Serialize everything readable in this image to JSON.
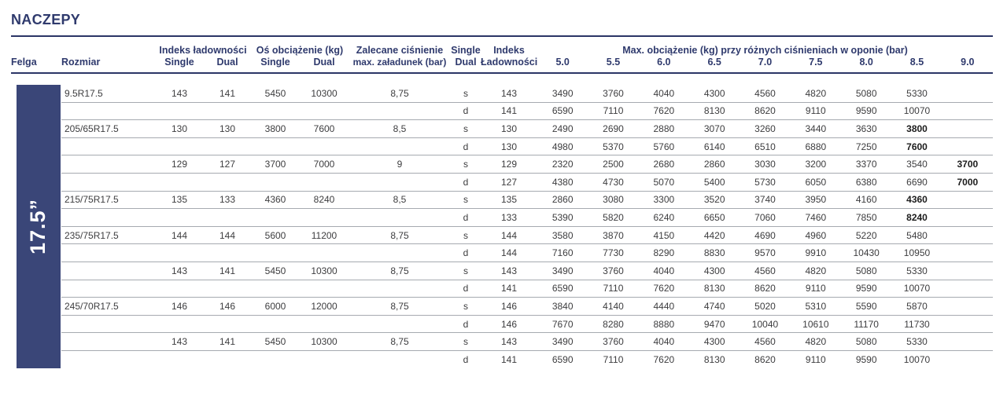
{
  "title": "NACZEPY",
  "sidebar": {
    "rim_label": "17.5”"
  },
  "header": {
    "felga": "Felga",
    "rozmiar": "Rozmiar",
    "indeks_ladownosci_group": "Indeks ładowności",
    "os_obciazenie_group": "Oś obciążenie (kg)",
    "zalecane_line1": "Zalecane ciśnienie",
    "zalecane_line2": "max. załadunek (bar)",
    "single": "Single",
    "dual": "Dual",
    "sd_single": "Single",
    "sd_dual": "Dual",
    "indeks_line1": "Indeks",
    "indeks_line2": "Ładowności",
    "max_obciazenie_group": "Max. obciążenie (kg) przy różnych ciśnieniach w oponie (bar)",
    "pressures": [
      "5.0",
      "5.5",
      "6.0",
      "6.5",
      "7.0",
      "7.5",
      "8.0",
      "8.5",
      "9.0"
    ]
  },
  "rows": [
    {
      "rozmiar": "9.5R17.5",
      "idx_s": "143",
      "idx_d": "141",
      "axle_s": "5450",
      "axle_d": "10300",
      "press": "8,75",
      "sd": "s",
      "ind": "143",
      "loads": [
        "3490",
        "3760",
        "4040",
        "4300",
        "4560",
        "4820",
        "5080",
        "5330",
        ""
      ],
      "bold": []
    },
    {
      "rozmiar": "",
      "idx_s": "",
      "idx_d": "",
      "axle_s": "",
      "axle_d": "",
      "press": "",
      "sd": "d",
      "ind": "141",
      "loads": [
        "6590",
        "7110",
        "7620",
        "8130",
        "8620",
        "9110",
        "9590",
        "10070",
        ""
      ],
      "bold": []
    },
    {
      "rozmiar": "205/65R17.5",
      "idx_s": "130",
      "idx_d": "130",
      "axle_s": "3800",
      "axle_d": "7600",
      "press": "8,5",
      "sd": "s",
      "ind": "130",
      "loads": [
        "2490",
        "2690",
        "2880",
        "3070",
        "3260",
        "3440",
        "3630",
        "3800",
        ""
      ],
      "bold": [
        7
      ]
    },
    {
      "rozmiar": "",
      "idx_s": "",
      "idx_d": "",
      "axle_s": "",
      "axle_d": "",
      "press": "",
      "sd": "d",
      "ind": "130",
      "loads": [
        "4980",
        "5370",
        "5760",
        "6140",
        "6510",
        "6880",
        "7250",
        "7600",
        ""
      ],
      "bold": [
        7
      ]
    },
    {
      "rozmiar": "",
      "idx_s": "129",
      "idx_d": "127",
      "axle_s": "3700",
      "axle_d": "7000",
      "press": "9",
      "sd": "s",
      "ind": "129",
      "loads": [
        "2320",
        "2500",
        "2680",
        "2860",
        "3030",
        "3200",
        "3370",
        "3540",
        "3700"
      ],
      "bold": [
        8
      ]
    },
    {
      "rozmiar": "",
      "idx_s": "",
      "idx_d": "",
      "axle_s": "",
      "axle_d": "",
      "press": "",
      "sd": "d",
      "ind": "127",
      "loads": [
        "4380",
        "4730",
        "5070",
        "5400",
        "5730",
        "6050",
        "6380",
        "6690",
        "7000"
      ],
      "bold": [
        8
      ]
    },
    {
      "rozmiar": "215/75R17.5",
      "idx_s": "135",
      "idx_d": "133",
      "axle_s": "4360",
      "axle_d": "8240",
      "press": "8,5",
      "sd": "s",
      "ind": "135",
      "loads": [
        "2860",
        "3080",
        "3300",
        "3520",
        "3740",
        "3950",
        "4160",
        "4360",
        ""
      ],
      "bold": [
        7
      ]
    },
    {
      "rozmiar": "",
      "idx_s": "",
      "idx_d": "",
      "axle_s": "",
      "axle_d": "",
      "press": "",
      "sd": "d",
      "ind": "133",
      "loads": [
        "5390",
        "5820",
        "6240",
        "6650",
        "7060",
        "7460",
        "7850",
        "8240",
        ""
      ],
      "bold": [
        7
      ]
    },
    {
      "rozmiar": "235/75R17.5",
      "idx_s": "144",
      "idx_d": "144",
      "axle_s": "5600",
      "axle_d": "11200",
      "press": "8,75",
      "sd": "s",
      "ind": "144",
      "loads": [
        "3580",
        "3870",
        "4150",
        "4420",
        "4690",
        "4960",
        "5220",
        "5480",
        ""
      ],
      "bold": []
    },
    {
      "rozmiar": "",
      "idx_s": "",
      "idx_d": "",
      "axle_s": "",
      "axle_d": "",
      "press": "",
      "sd": "d",
      "ind": "144",
      "loads": [
        "7160",
        "7730",
        "8290",
        "8830",
        "9570",
        "9910",
        "10430",
        "10950",
        ""
      ],
      "bold": []
    },
    {
      "rozmiar": "",
      "idx_s": "143",
      "idx_d": "141",
      "axle_s": "5450",
      "axle_d": "10300",
      "press": "8,75",
      "sd": "s",
      "ind": "143",
      "loads": [
        "3490",
        "3760",
        "4040",
        "4300",
        "4560",
        "4820",
        "5080",
        "5330",
        ""
      ],
      "bold": []
    },
    {
      "rozmiar": "",
      "idx_s": "",
      "idx_d": "",
      "axle_s": "",
      "axle_d": "",
      "press": "",
      "sd": "d",
      "ind": "141",
      "loads": [
        "6590",
        "7110",
        "7620",
        "8130",
        "8620",
        "9110",
        "9590",
        "10070",
        ""
      ],
      "bold": []
    },
    {
      "rozmiar": "245/70R17.5",
      "idx_s": "146",
      "idx_d": "146",
      "axle_s": "6000",
      "axle_d": "12000",
      "press": "8,75",
      "sd": "s",
      "ind": "146",
      "loads": [
        "3840",
        "4140",
        "4440",
        "4740",
        "5020",
        "5310",
        "5590",
        "5870",
        ""
      ],
      "bold": []
    },
    {
      "rozmiar": "",
      "idx_s": "",
      "idx_d": "",
      "axle_s": "",
      "axle_d": "",
      "press": "",
      "sd": "d",
      "ind": "146",
      "loads": [
        "7670",
        "8280",
        "8880",
        "9470",
        "10040",
        "10610",
        "11170",
        "11730",
        ""
      ],
      "bold": []
    },
    {
      "rozmiar": "",
      "idx_s": "143",
      "idx_d": "141",
      "axle_s": "5450",
      "axle_d": "10300",
      "press": "8,75",
      "sd": "s",
      "ind": "143",
      "loads": [
        "3490",
        "3760",
        "4040",
        "4300",
        "4560",
        "4820",
        "5080",
        "5330",
        ""
      ],
      "bold": []
    },
    {
      "rozmiar": "",
      "idx_s": "",
      "idx_d": "",
      "axle_s": "",
      "axle_d": "",
      "press": "",
      "sd": "d",
      "ind": "141",
      "loads": [
        "6590",
        "7110",
        "7620",
        "8130",
        "8620",
        "9110",
        "9590",
        "10070",
        ""
      ],
      "bold": []
    }
  ]
}
